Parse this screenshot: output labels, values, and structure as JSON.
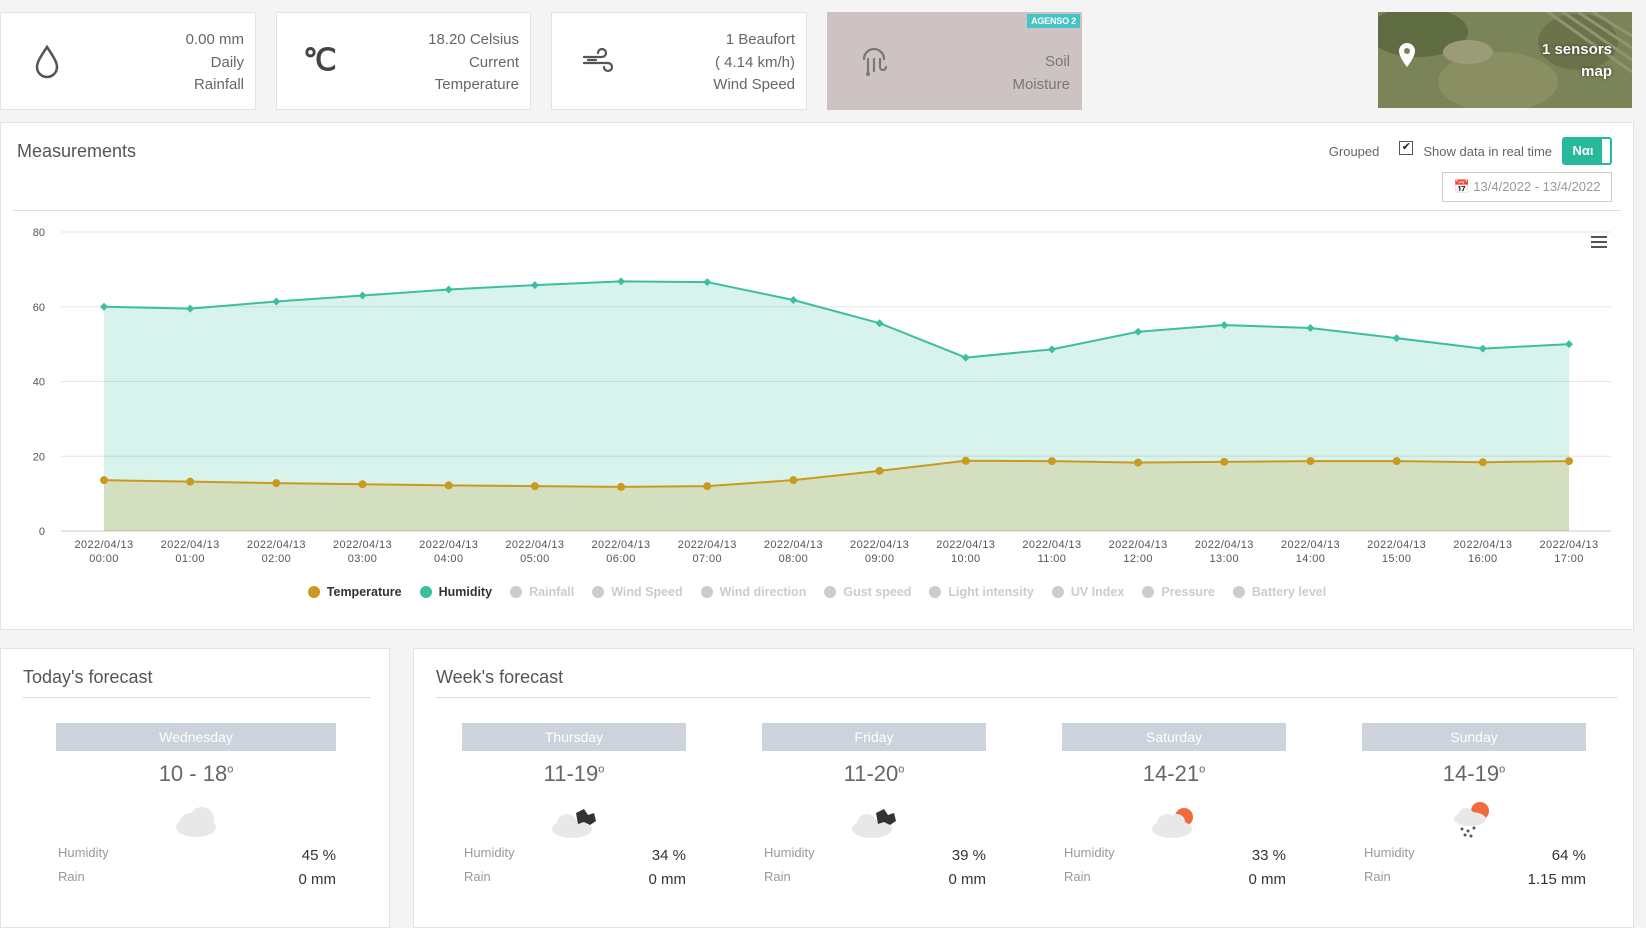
{
  "stats": {
    "rain": {
      "value": "0.00 mm",
      "line2": "Daily",
      "line3": "Rainfall",
      "icon": "droplet-icon"
    },
    "temp": {
      "value": "18.20 Celsius",
      "line2": "Current",
      "line3": "Temperature",
      "icon": "celsius-icon"
    },
    "wind": {
      "value": "1 Beaufort",
      "line2": "( 4.14 km/h)",
      "line3": "Wind Speed",
      "icon": "wind-icon"
    },
    "soil": {
      "badge": "AGENSO 2",
      "line2": "Soil",
      "line3": "Moisture",
      "icon": "soil-sensor-icon"
    },
    "map": {
      "line1": "1 sensors",
      "line2": "map",
      "icon": "map-pin-icon"
    }
  },
  "measurements": {
    "title": "Measurements",
    "grouped_label": "Grouped",
    "realtime_label": "Show data in real time",
    "realtime_toggle": "Ναι",
    "date_range": "13/4/2022 - 13/4/2022",
    "colors": {
      "temperature": "#c99a1f",
      "humidity": "#3cbf9f",
      "inactive": "#cccccc"
    }
  },
  "chart_data": {
    "type": "area",
    "x": [
      "2022/04/13 00:00",
      "2022/04/13 01:00",
      "2022/04/13 02:00",
      "2022/04/13 03:00",
      "2022/04/13 04:00",
      "2022/04/13 05:00",
      "2022/04/13 06:00",
      "2022/04/13 07:00",
      "2022/04/13 08:00",
      "2022/04/13 09:00",
      "2022/04/13 10:00",
      "2022/04/13 11:00",
      "2022/04/13 12:00",
      "2022/04/13 13:00",
      "2022/04/13 14:00",
      "2022/04/13 15:00",
      "2022/04/13 16:00",
      "2022/04/13 17:00"
    ],
    "ylim": [
      0,
      80
    ],
    "yticks": [
      0,
      20,
      40,
      60,
      80
    ],
    "series": [
      {
        "name": "Temperature",
        "color": "#c99a1f",
        "values": [
          13.6,
          13.2,
          12.8,
          12.5,
          12.2,
          12.0,
          11.8,
          12.0,
          13.6,
          16.1,
          18.8,
          18.7,
          18.3,
          18.5,
          18.7,
          18.7,
          18.4,
          18.7
        ]
      },
      {
        "name": "Humidity",
        "color": "#3cbf9f",
        "values": [
          60.0,
          59.5,
          61.4,
          63.0,
          64.6,
          65.8,
          66.8,
          66.6,
          61.8,
          55.6,
          46.4,
          48.6,
          53.3,
          55.1,
          54.3,
          51.6,
          48.8,
          50.0
        ]
      }
    ],
    "legend": [
      "Temperature",
      "Humidity",
      "Rainfall",
      "Wind Speed",
      "Wind direction",
      "Gust speed",
      "Light intensity",
      "UV Index",
      "Pressure",
      "Battery level"
    ],
    "legend_active": [
      true,
      true,
      false,
      false,
      false,
      false,
      false,
      false,
      false,
      false
    ],
    "grid": true,
    "legend_position": "bottom"
  },
  "today": {
    "title": "Today's forecast",
    "day": {
      "name": "Wednesday",
      "range": "10 - 18",
      "deg": "o",
      "icon": "cloud-icon",
      "humidity_label": "Humidity",
      "humidity": "45 %",
      "rain_label": "Rain",
      "rain": "0 mm"
    }
  },
  "week": {
    "title": "Week's forecast",
    "days": [
      {
        "name": "Thursday",
        "range": "11-19",
        "deg": "o",
        "icon": "night-cloudy-icon",
        "humidity_label": "Humidity",
        "humidity": "34 %",
        "rain_label": "Rain",
        "rain": "0 mm"
      },
      {
        "name": "Friday",
        "range": "11-20",
        "deg": "o",
        "icon": "night-cloudy-icon",
        "humidity_label": "Humidity",
        "humidity": "39 %",
        "rain_label": "Rain",
        "rain": "0 mm"
      },
      {
        "name": "Saturday",
        "range": "14-21",
        "deg": "o",
        "icon": "partly-sunny-icon",
        "humidity_label": "Humidity",
        "humidity": "33 %",
        "rain_label": "Rain",
        "rain": "0 mm"
      },
      {
        "name": "Sunday",
        "range": "14-19",
        "deg": "o",
        "icon": "sun-rain-icon",
        "humidity_label": "Humidity",
        "humidity": "64 %",
        "rain_label": "Rain",
        "rain": "1.15 mm"
      }
    ]
  }
}
